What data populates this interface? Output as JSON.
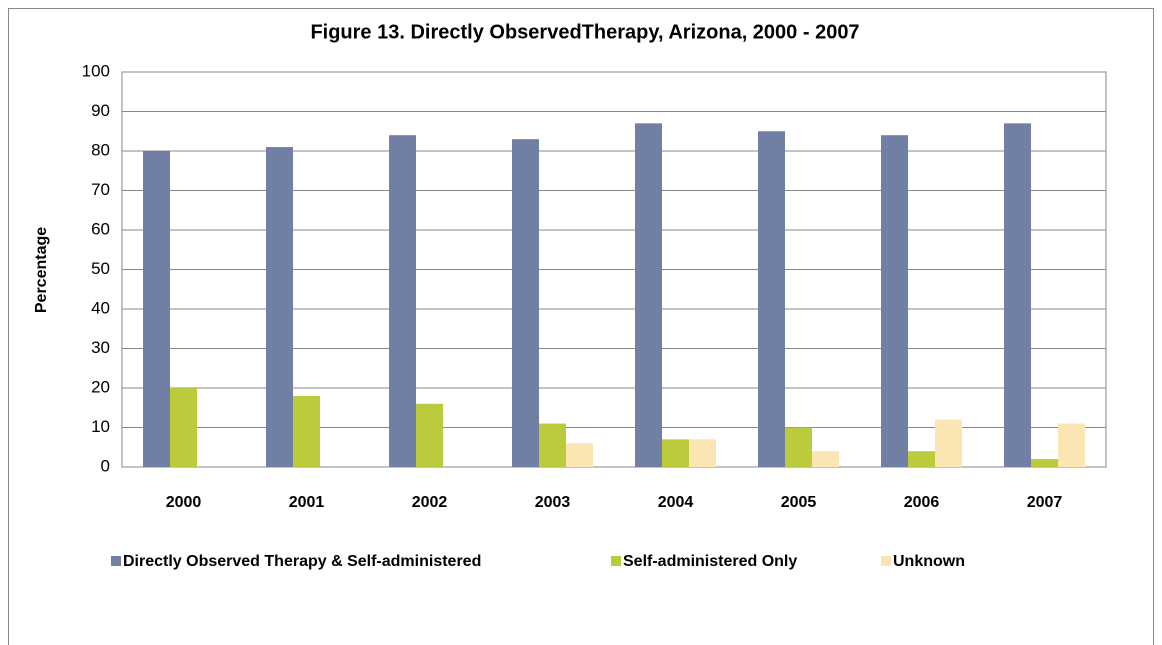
{
  "chart_data": {
    "type": "bar",
    "title": "Figure 13. Directly ObservedTherapy, Arizona, 2000 - 2007",
    "y_label": "Percentage",
    "categories": [
      "2000",
      "2001",
      "2002",
      "2003",
      "2004",
      "2005",
      "2006",
      "2007"
    ],
    "series": [
      {
        "name": "Directly Observed Therapy & Self-administered",
        "color": "#717fa5",
        "values": [
          80,
          81,
          84,
          83,
          87,
          85,
          84,
          87
        ]
      },
      {
        "name": "Self-administered Only",
        "color": "#bccb3b",
        "values": [
          20,
          18,
          16,
          11,
          7,
          10,
          4,
          2
        ]
      },
      {
        "name": "Unknown",
        "color": "#fbe5b2",
        "values": [
          0,
          0,
          0,
          6,
          7,
          4,
          12,
          11
        ]
      }
    ],
    "ylim": [
      0,
      100
    ],
    "yticks": [
      0,
      10,
      20,
      30,
      40,
      50,
      60,
      70,
      80,
      90,
      100
    ],
    "grid": true,
    "legend": "bottom"
  }
}
